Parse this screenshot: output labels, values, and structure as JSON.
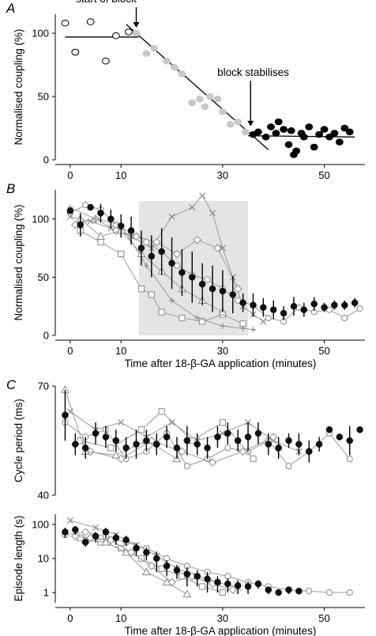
{
  "chart_data": [
    {
      "panel": "A",
      "type": "scatter",
      "ylabel": "Normalised coupling (%)",
      "xlim": [
        -2,
        58
      ],
      "ylim": [
        0,
        115
      ],
      "xticks": [
        0,
        10,
        30,
        50
      ],
      "yticks": [
        0,
        50,
        100
      ],
      "annotations": [
        {
          "text": "start of block",
          "x": 13,
          "y": 108
        },
        {
          "text": "block stabilises",
          "x": 36,
          "y": 50
        }
      ],
      "series": [
        {
          "style": "open",
          "x": [
            -1,
            1,
            4,
            7,
            9,
            11.5
          ],
          "y": [
            108,
            85,
            109,
            78,
            98,
            101
          ]
        },
        {
          "style": "grey",
          "x": [
            13,
            15,
            16.5,
            19,
            20.5,
            22,
            24,
            25.5,
            26.5,
            27.5,
            29,
            30,
            31.5,
            33,
            34.5
          ],
          "y": [
            100,
            84,
            88,
            78,
            73,
            68,
            45,
            48,
            42,
            50,
            48,
            38,
            28,
            30,
            22
          ]
        },
        {
          "style": "filled",
          "x": [
            36,
            37,
            38.5,
            39.5,
            40.5,
            41,
            42,
            43,
            43.5,
            44,
            44.5,
            45.5,
            46,
            47,
            48,
            49,
            50,
            51,
            52,
            53,
            54,
            55
          ],
          "y": [
            20,
            22,
            18,
            26,
            21,
            30,
            24,
            12,
            23,
            4,
            7,
            21,
            18,
            26,
            10,
            20,
            24,
            18,
            21,
            14,
            25,
            22
          ]
        }
      ],
      "fit_lines": [
        {
          "x": [
            -1,
            13.5
          ],
          "y": [
            97,
            97
          ]
        },
        {
          "x": [
            11,
            39
          ],
          "y": [
            107,
            8
          ]
        },
        {
          "x": [
            35,
            56
          ],
          "y": [
            19,
            18
          ]
        }
      ]
    },
    {
      "panel": "B",
      "type": "line",
      "ylabel": "Normalised coupling (%)",
      "xlabel": "Time after 18-β-GA application (minutes)",
      "xlim": [
        -2,
        58
      ],
      "ylim": [
        0,
        125
      ],
      "xticks": [
        0,
        10,
        30,
        50
      ],
      "yticks": [
        0,
        50,
        100
      ],
      "shaded_region": [
        13.5,
        35
      ],
      "mean_series": {
        "x": [
          0,
          2,
          4,
          6,
          8,
          10,
          12,
          14,
          16,
          18,
          20,
          22,
          24,
          26,
          28,
          30,
          32,
          34,
          36,
          38,
          40,
          42,
          44,
          46,
          48,
          50,
          52,
          54,
          56
        ],
        "y": [
          107,
          95,
          110,
          105,
          100,
          94,
          90,
          75,
          68,
          72,
          62,
          54,
          50,
          44,
          40,
          38,
          35,
          28,
          26,
          24,
          22,
          19,
          25,
          22,
          27,
          24,
          26,
          26,
          28
        ],
        "err": [
          0,
          10,
          0,
          8,
          8,
          10,
          12,
          15,
          18,
          20,
          22,
          20,
          22,
          18,
          20,
          18,
          16,
          8,
          10,
          8,
          8,
          6,
          8,
          6,
          6,
          4,
          4,
          4,
          4
        ]
      },
      "individual_series": [
        {
          "marker": "circle",
          "x": [
            0,
            3,
            6,
            9,
            12,
            15,
            18,
            21,
            24,
            27,
            30,
            33,
            36,
            39,
            42,
            45,
            48,
            51,
            54,
            57
          ],
          "y": [
            105,
            112,
            108,
            95,
            88,
            80,
            72,
            60,
            52,
            48,
            40,
            30,
            26,
            15,
            12,
            24,
            20,
            22,
            15,
            23
          ]
        },
        {
          "marker": "cross",
          "x": [
            0,
            4,
            8,
            12,
            16,
            20,
            24,
            26,
            28,
            30,
            32,
            34,
            36,
            38
          ],
          "y": [
            102,
            98,
            92,
            85,
            75,
            102,
            110,
            120,
            105,
            75,
            50,
            25,
            18,
            12
          ]
        },
        {
          "marker": "square",
          "x": [
            2,
            6,
            10,
            14,
            16,
            18,
            22,
            26,
            30,
            34
          ],
          "y": [
            90,
            80,
            70,
            40,
            35,
            20,
            15,
            12,
            18,
            10
          ]
        },
        {
          "marker": "diamond",
          "x": [
            1,
            5,
            9,
            13,
            17,
            21,
            25,
            29,
            33
          ],
          "y": [
            95,
            100,
            90,
            85,
            80,
            70,
            82,
            75,
            40
          ]
        },
        {
          "marker": "plus",
          "x": [
            0,
            5,
            10,
            15,
            20,
            25,
            30,
            34,
            36
          ],
          "y": [
            110,
            100,
            95,
            60,
            30,
            15,
            8,
            6,
            5
          ]
        },
        {
          "marker": "triangle",
          "x": [
            2,
            6,
            10,
            14,
            18,
            22,
            26,
            30
          ],
          "y": [
            100,
            85,
            90,
            70,
            55,
            40,
            30,
            20
          ]
        }
      ]
    },
    {
      "panel": "C",
      "type": "line",
      "ylabel": "Cycle period (ms)",
      "xlim": [
        -2,
        58
      ],
      "ylim": [
        40,
        70
      ],
      "yticks": [
        40,
        70
      ],
      "mean_series": {
        "x": [
          -1,
          1,
          3,
          5,
          7,
          9,
          11,
          13,
          15,
          17,
          19,
          21,
          23,
          25,
          27,
          29,
          31,
          33,
          35,
          37,
          39,
          41,
          43,
          45,
          47,
          49,
          51,
          53,
          55,
          57
        ],
        "y": [
          62,
          54,
          53,
          57,
          56,
          55,
          53,
          54,
          55,
          54,
          56,
          53,
          55,
          54,
          53,
          56,
          57,
          55,
          56,
          57,
          54,
          53,
          55,
          54,
          52,
          54,
          58,
          56,
          55,
          58
        ],
        "err": [
          7,
          3,
          3,
          3,
          3,
          3,
          3,
          4,
          3,
          3,
          3,
          3,
          4,
          3,
          3,
          3,
          3,
          3,
          4,
          3,
          3,
          3,
          2,
          3,
          3,
          2,
          0,
          0,
          4,
          0
        ]
      },
      "individual_series": [
        {
          "marker": "circle",
          "x": [
            -1,
            3,
            7,
            11,
            15,
            19,
            23,
            27,
            31,
            35,
            39,
            43,
            47,
            51,
            55
          ],
          "y": [
            60,
            56,
            58,
            50,
            52,
            57,
            48,
            50,
            53,
            52,
            55,
            48,
            52,
            57,
            50
          ]
        },
        {
          "marker": "cross",
          "x": [
            0,
            5,
            10,
            15,
            20,
            25,
            30,
            35,
            40,
            45
          ],
          "y": [
            63,
            58,
            60,
            56,
            60,
            55,
            57,
            60,
            55,
            52
          ]
        },
        {
          "marker": "square",
          "x": [
            2,
            8,
            14,
            18,
            24,
            30,
            36
          ],
          "y": [
            55,
            53,
            58,
            63,
            55,
            60,
            50
          ]
        },
        {
          "marker": "diamond",
          "x": [
            4,
            10,
            16,
            22,
            28,
            34,
            40
          ],
          "y": [
            52,
            50,
            55,
            52,
            49,
            52,
            56
          ]
        },
        {
          "marker": "triangle",
          "x": [
            -1,
            3,
            9,
            15,
            21
          ],
          "y": [
            69,
            52,
            51,
            55,
            50
          ]
        }
      ]
    },
    {
      "panel": "C",
      "type": "line",
      "ylabel": "Episode length (s)",
      "xlabel": "Time after 18-β-GA application (minutes)",
      "yscale": "log",
      "xlim": [
        -2,
        58
      ],
      "ylim": [
        0.5,
        200
      ],
      "xticks": [
        0,
        10,
        30,
        50
      ],
      "yticks": [
        1,
        10,
        100
      ],
      "mean_series": {
        "x": [
          -1,
          1,
          3,
          5,
          7,
          9,
          11,
          13,
          15,
          17,
          19,
          21,
          23,
          25,
          27,
          29,
          31,
          33,
          35,
          37,
          39,
          41,
          43,
          45
        ],
        "y": [
          60,
          70,
          30,
          45,
          60,
          40,
          35,
          20,
          15,
          10,
          6,
          4.5,
          3.5,
          3,
          2.5,
          2,
          1.8,
          1.6,
          1.5,
          1.8,
          1.2,
          1.0,
          1.2,
          1.1
        ],
        "err": [
          20,
          20,
          8,
          15,
          20,
          15,
          12,
          8,
          6,
          6,
          3,
          2,
          2,
          1.5,
          1.5,
          1,
          0.8,
          0.7,
          0.6,
          0.5,
          0.3,
          0.2,
          0.3,
          0.2
        ]
      },
      "individual_series": [
        {
          "marker": "circle",
          "x": [
            -1,
            3,
            7,
            11,
            15,
            19,
            23,
            27,
            31,
            35,
            39,
            43,
            47,
            51,
            55
          ],
          "y": [
            50,
            60,
            45,
            30,
            20,
            10,
            6,
            4,
            3,
            2,
            1.5,
            1.2,
            1.1,
            1.0,
            1.0
          ]
        },
        {
          "marker": "cross",
          "x": [
            0,
            5,
            9,
            13,
            17,
            21,
            25,
            29,
            33
          ],
          "y": [
            130,
            80,
            50,
            25,
            12,
            5,
            3,
            2,
            1.4
          ]
        },
        {
          "marker": "square",
          "x": [
            2,
            6,
            10,
            14,
            18,
            22,
            26,
            30
          ],
          "y": [
            40,
            30,
            20,
            10,
            5,
            3,
            1.5,
            1.0
          ]
        },
        {
          "marker": "diamond",
          "x": [
            1,
            4,
            8,
            12,
            16,
            20,
            24,
            28,
            32
          ],
          "y": [
            45,
            40,
            35,
            15,
            6,
            2,
            3,
            1.8,
            1.2
          ]
        },
        {
          "marker": "triangle",
          "x": [
            3,
            7,
            11,
            15,
            19,
            23
          ],
          "y": [
            35,
            30,
            15,
            4,
            2,
            0.9
          ]
        }
      ]
    }
  ]
}
